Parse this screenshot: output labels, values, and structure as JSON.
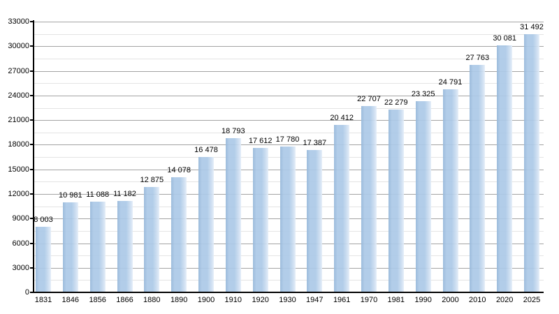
{
  "chart": {
    "background_color": "#ffffff",
    "bar_color_main": "#accae7",
    "bar_color_left_edge": "#97b8da",
    "bar_color_right_fade": "#e4eef8",
    "grid_major_color": "#a3a3a3",
    "grid_minor_color": "#e4e4e4",
    "axis_color": "#000000",
    "text_color": "#000000"
  },
  "chart_data": {
    "type": "bar",
    "title": "",
    "xlabel": "",
    "ylabel": "",
    "categories": [
      "1831",
      "1846",
      "1856",
      "1866",
      "1880",
      "1890",
      "1900",
      "1910",
      "1920",
      "1930",
      "1947",
      "1961",
      "1970",
      "1981",
      "1990",
      "2000",
      "2010",
      "2020",
      "2025"
    ],
    "values": [
      8003,
      10981,
      11088,
      11182,
      12875,
      14078,
      16478,
      18793,
      17612,
      17780,
      17387,
      20412,
      22707,
      22279,
      23325,
      24791,
      27763,
      30081,
      31492
    ],
    "value_labels": [
      "8 003",
      "10 981",
      "11 088",
      "11 182",
      "12 875",
      "14 078",
      "16 478",
      "18 793",
      "17 612",
      "17 780",
      "17 387",
      "20 412",
      "22 707",
      "22 279",
      "23 325",
      "24 791",
      "27 763",
      "30 081",
      "31 492"
    ],
    "ylim": [
      0,
      33000
    ],
    "y_major_step": 3000,
    "y_minor_step": 1500,
    "y_tick_labels": [
      "0",
      "3000",
      "6000",
      "9000",
      "12000",
      "15000",
      "18000",
      "21000",
      "24000",
      "27000",
      "30000",
      "33000"
    ],
    "grid": "major-and-minor-horizontal",
    "legend": "none"
  }
}
